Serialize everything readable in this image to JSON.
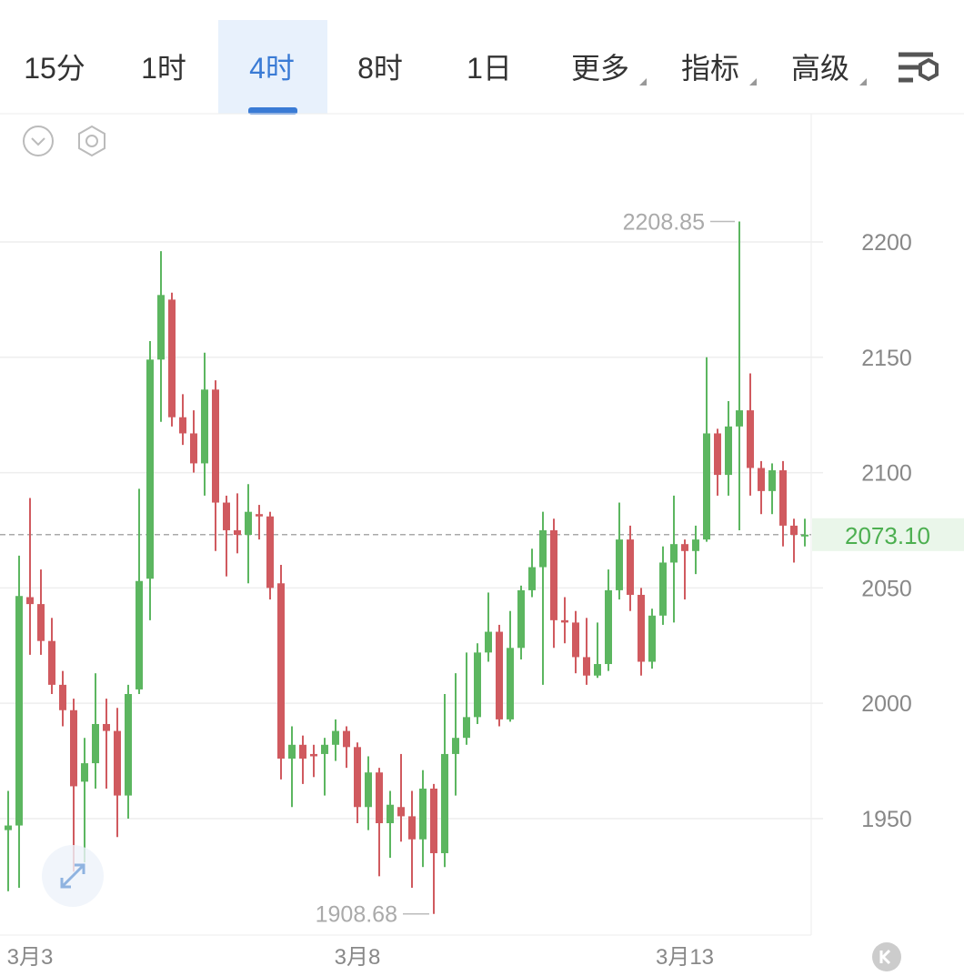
{
  "tabs": [
    {
      "label": "15分"
    },
    {
      "label": "1时"
    },
    {
      "label": "4时",
      "active": true
    },
    {
      "label": "8时"
    },
    {
      "label": "1日"
    },
    {
      "label": "更多",
      "menu": true
    },
    {
      "label": "指标",
      "menu": true
    },
    {
      "label": "高级",
      "menu": true
    }
  ],
  "chart_data": {
    "type": "candlestick",
    "categories": [
      null,
      null,
      "3月3",
      null,
      null,
      null,
      null,
      null,
      null,
      null,
      null,
      null,
      null,
      null,
      null,
      null,
      null,
      null,
      null,
      null,
      null,
      null,
      null,
      null,
      null,
      null,
      null,
      null,
      null,
      null,
      null,
      null,
      "3月8",
      null,
      null,
      null,
      null,
      null,
      null,
      null,
      null,
      null,
      null,
      null,
      null,
      null,
      null,
      null,
      null,
      null,
      null,
      null,
      null,
      null,
      null,
      null,
      null,
      null,
      null,
      null,
      null,
      null,
      "3月13",
      null,
      null,
      null,
      null,
      null,
      null,
      null,
      null,
      null,
      null,
      null
    ],
    "open": [
      1945,
      1947,
      2046,
      2043,
      2027,
      2008,
      1997,
      1966,
      1974,
      1991,
      1988,
      1960,
      2006,
      2054,
      2149,
      2175,
      2124,
      2117,
      2104,
      2136,
      2087,
      2075,
      2073,
      2082,
      2081,
      2052,
      1976,
      1982,
      1978,
      1978,
      1982,
      1988,
      1981,
      1955,
      1970,
      1948,
      1955,
      1951,
      1941,
      1963,
      1935,
      1978,
      1985,
      1994,
      2022,
      2031,
      1993,
      2024,
      2049,
      2059,
      2075,
      2036,
      2035,
      2020,
      2012,
      2017,
      2049,
      2071,
      2047,
      2018,
      2038,
      2061,
      2069,
      2066,
      2071,
      2117,
      2099,
      2120,
      2127,
      2102,
      2092,
      2101,
      2077,
      2072.5
    ],
    "high": [
      1962,
      2064,
      2089,
      2058,
      2037,
      2014,
      2002,
      1985,
      2013,
      2002,
      1998,
      2008,
      2093,
      2157,
      2196,
      2178,
      2134,
      2127,
      2152,
      2140,
      2090,
      2091,
      2095,
      2086,
      2083,
      2060,
      1990,
      1986,
      1982,
      1985,
      1993,
      1990,
      1983,
      1977,
      1972,
      1962,
      1978,
      1962,
      1971,
      1965,
      2004,
      2013,
      2022,
      2026,
      2048,
      2034,
      2040,
      2051,
      2067,
      2083,
      2080,
      2046,
      2040,
      2037,
      2035,
      2058,
      2087,
      2077,
      2050,
      2041,
      2068,
      2090,
      2071,
      2077,
      2150,
      2119,
      2131,
      2208.85,
      2143,
      2105,
      2104,
      2105,
      2080,
      2080
    ],
    "low": [
      1918.5,
      1920,
      2021,
      2021,
      2004,
      1990,
      1927,
      1931,
      1963,
      1963,
      1942,
      1950,
      2004,
      2036,
      2122,
      2120,
      2112,
      2100,
      2090,
      2066,
      2055,
      2065,
      2052,
      2071,
      2045,
      1967,
      1955,
      1965,
      1968,
      1960,
      1975,
      1972,
      1948,
      1945,
      1925,
      1933,
      1940,
      1920,
      1929,
      1908.68,
      1929,
      1960,
      1982,
      1991,
      2018,
      1990,
      1992,
      2019,
      2046,
      2008,
      2024,
      2026,
      2013,
      2008,
      2011,
      2014,
      2045,
      2040,
      2012,
      2015,
      2034,
      2035,
      2045,
      2056,
      2070,
      2090,
      2090,
      2075,
      2090,
      2082,
      2082,
      2068,
      2061,
      2068
    ],
    "close": [
      1947,
      2046.5,
      2043,
      2027,
      2008,
      1997,
      1964,
      1974,
      1991,
      1988,
      1960,
      2004,
      2053,
      2149,
      2177,
      2124,
      2117,
      2104,
      2136,
      2087,
      2075,
      2073,
      2083,
      2081,
      2050,
      1976,
      1982,
      1976,
      1977,
      1982,
      1988,
      1981,
      1955,
      1970,
      1948,
      1956,
      1951,
      1941,
      1963,
      1935,
      1978,
      1985,
      1994,
      2022,
      2031,
      1993,
      2024,
      2049,
      2059,
      2075,
      2036,
      2035,
      2020,
      2012,
      2017,
      2049,
      2071,
      2047,
      2018,
      2038,
      2061,
      2069,
      2066,
      2071,
      2117,
      2099,
      2120,
      2127,
      2102,
      2092,
      2101,
      2077,
      2073,
      2073.1
    ],
    "up_color": "#5cb660",
    "down_color": "#d05a5f",
    "ylim": [
      1899.5,
      2255.6
    ],
    "yticks": [
      1950,
      2000,
      2050,
      2100,
      2150,
      2200
    ],
    "grid": true,
    "last_price": {
      "value": 2073.1,
      "label": "2073.10"
    }
  }
}
